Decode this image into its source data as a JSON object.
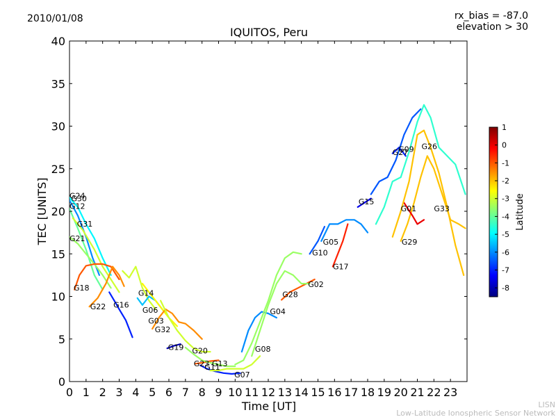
{
  "header": {
    "date": "2010/01/08",
    "bias": "rx_bias = -87.0",
    "elevation": "elevation > 30"
  },
  "footer": {
    "short": "LISN",
    "long": "Low-Latitude Ionospheric Sensor Network"
  },
  "chart_data": {
    "type": "line",
    "title": "IQUITOS, Peru",
    "xlabel": "Time [UT]",
    "ylabel": "TEC [UNITS]",
    "xlim": [
      0,
      24
    ],
    "ylim": [
      0,
      40
    ],
    "xticks": [
      0,
      1,
      2,
      3,
      4,
      5,
      6,
      7,
      8,
      9,
      10,
      11,
      12,
      13,
      14,
      15,
      16,
      17,
      18,
      19,
      20,
      21,
      22,
      23
    ],
    "yticks": [
      0,
      5,
      10,
      15,
      20,
      25,
      30,
      35,
      40
    ],
    "colorbar": {
      "label": "Latitude",
      "range": [
        -8.5,
        1
      ],
      "ticks": [
        1,
        0,
        -1,
        -2,
        -3,
        -4,
        -5,
        -6,
        -7,
        -8
      ],
      "stops": [
        "#00007f",
        "#0000ff",
        "#007fff",
        "#00ffff",
        "#7fff7f",
        "#ffff00",
        "#ff7f00",
        "#ff0000",
        "#7f0000"
      ]
    },
    "series": [
      {
        "name": "G24",
        "label_at": [
          0,
          21.5
        ],
        "lat": -5,
        "points": [
          [
            0,
            21.6
          ],
          [
            0.5,
            20.5
          ],
          [
            1,
            18.5
          ],
          [
            1.5,
            16.8
          ],
          [
            2,
            14.5
          ],
          [
            2.5,
            12.5
          ]
        ]
      },
      {
        "name": "G30",
        "label_at": [
          0.1,
          21.2
        ],
        "lat": -6,
        "points": [
          [
            0,
            21.3
          ],
          [
            0.5,
            19.5
          ],
          [
            1,
            17
          ],
          [
            1.4,
            14.5
          ],
          [
            1.8,
            12.5
          ]
        ]
      },
      {
        "name": "G12",
        "label_at": [
          0,
          20.3
        ],
        "lat": -4,
        "points": [
          [
            0,
            20.3
          ],
          [
            0.5,
            18
          ],
          [
            1,
            15.5
          ],
          [
            1.5,
            12.5
          ],
          [
            2,
            10.8
          ]
        ]
      },
      {
        "name": "G31",
        "label_at": [
          0.45,
          18.2
        ],
        "lat": -3,
        "points": [
          [
            0.2,
            19.2
          ],
          [
            0.8,
            17.8
          ],
          [
            1.5,
            15.5
          ],
          [
            2,
            13.5
          ],
          [
            2.5,
            12
          ],
          [
            3,
            10.5
          ]
        ]
      },
      {
        "name": "G21",
        "label_at": [
          0,
          16.5
        ],
        "lat": -3.5,
        "points": [
          [
            0,
            17
          ],
          [
            0.5,
            16.2
          ],
          [
            1,
            15
          ],
          [
            1.5,
            13.8
          ],
          [
            2,
            12.5
          ],
          [
            2.5,
            11
          ]
        ]
      },
      {
        "name": "G18",
        "label_at": [
          0.25,
          10.7
        ],
        "lat": -1,
        "points": [
          [
            0.3,
            10.8
          ],
          [
            0.6,
            12.5
          ],
          [
            1,
            13.6
          ],
          [
            1.5,
            13.8
          ],
          [
            2,
            13.8
          ],
          [
            2.5,
            13.5
          ],
          [
            3,
            12
          ]
        ]
      },
      {
        "name": "G22",
        "label_at": [
          1.25,
          8.5
        ],
        "lat": -1.5,
        "points": [
          [
            1.2,
            8.8
          ],
          [
            1.7,
            9.8
          ],
          [
            2.2,
            11.5
          ],
          [
            2.6,
            13.5
          ],
          [
            3,
            12.5
          ],
          [
            3.3,
            11.2
          ]
        ]
      },
      {
        "name": "G16",
        "label_at": [
          2.65,
          8.7
        ],
        "lat": -7,
        "points": [
          [
            2.4,
            10.5
          ],
          [
            2.7,
            9.5
          ],
          [
            3,
            8.5
          ],
          [
            3.4,
            7.2
          ],
          [
            3.8,
            5.2
          ]
        ]
      },
      {
        "name": "G14",
        "label_at": [
          4.15,
          10.1
        ],
        "lat": -3,
        "points": [
          [
            3.2,
            13
          ],
          [
            3.6,
            12.2
          ],
          [
            4,
            13.5
          ],
          [
            4.4,
            11
          ],
          [
            4.8,
            9.5
          ],
          [
            5.2,
            8.5
          ]
        ]
      },
      {
        "name": "G06",
        "label_at": [
          4.4,
          8.1
        ],
        "lat": -5.5,
        "points": [
          [
            4.1,
            9.8
          ],
          [
            4.4,
            9
          ],
          [
            4.8,
            10
          ],
          [
            5.2,
            9.5
          ],
          [
            5.6,
            8.5
          ],
          [
            6,
            7.5
          ]
        ]
      },
      {
        "name": "G03",
        "label_at": [
          4.75,
          6.8
        ],
        "lat": -2.5,
        "points": [
          [
            4.4,
            11.5
          ],
          [
            4.8,
            10.5
          ],
          [
            5.2,
            9.5
          ],
          [
            5.6,
            8.5
          ],
          [
            6,
            7.5
          ],
          [
            6.5,
            6.5
          ]
        ]
      },
      {
        "name": "G32",
        "label_at": [
          5.15,
          5.8
        ],
        "lat": -1.5,
        "points": [
          [
            5,
            6.2
          ],
          [
            5.4,
            7.5
          ],
          [
            5.8,
            8.5
          ],
          [
            6.2,
            8
          ],
          [
            6.6,
            7
          ],
          [
            7,
            6.8
          ],
          [
            7.5,
            6
          ],
          [
            8,
            5
          ]
        ]
      },
      {
        "name": "G19",
        "label_at": [
          5.95,
          3.7
        ],
        "lat": -8,
        "points": [
          [
            5.9,
            3.9
          ],
          [
            6.3,
            4.2
          ],
          [
            6.7,
            4.4
          ]
        ]
      },
      {
        "name": "G20",
        "label_at": [
          7.4,
          3.3
        ],
        "lat": -3,
        "points": [
          [
            5.5,
            9.5
          ],
          [
            6,
            7.5
          ],
          [
            6.5,
            6
          ],
          [
            7,
            4.8
          ],
          [
            7.5,
            3.9
          ],
          [
            8,
            3.5
          ],
          [
            8.5,
            3.5
          ]
        ]
      },
      {
        "name": "G23",
        "label_at": [
          7.5,
          1.8
        ],
        "lat": -1,
        "points": [
          [
            7.6,
            2.1
          ],
          [
            8,
            2.2
          ],
          [
            8.5,
            2.4
          ],
          [
            9,
            2.5
          ]
        ]
      },
      {
        "name": "G11",
        "label_at": [
          8.15,
          1.4
        ],
        "lat": -7,
        "points": [
          [
            7.9,
            1.9
          ],
          [
            8.3,
            1.5
          ],
          [
            8.8,
            1.2
          ],
          [
            9.3,
            1
          ],
          [
            9.8,
            0.9
          ],
          [
            10.3,
            1
          ]
        ]
      },
      {
        "name": "G13",
        "label_at": [
          8.6,
          1.8
        ],
        "lat": -3.5,
        "points": [
          [
            7,
            4
          ],
          [
            7.5,
            3.2
          ],
          [
            8,
            2.5
          ],
          [
            8.5,
            2.2
          ],
          [
            9,
            2
          ],
          [
            9.5,
            1.8
          ],
          [
            10,
            1.8
          ]
        ]
      },
      {
        "name": "G07",
        "label_at": [
          9.95,
          0.5
        ],
        "lat": -3,
        "points": [
          [
            8.5,
            1.3
          ],
          [
            9,
            1.3
          ],
          [
            9.5,
            1.5
          ],
          [
            10,
            1.5
          ],
          [
            10.5,
            1.5
          ],
          [
            11,
            2
          ],
          [
            11.5,
            3
          ]
        ]
      },
      {
        "name": "G08",
        "label_at": [
          11.2,
          3.5
        ],
        "lat": -6,
        "points": [
          [
            10.4,
            3.5
          ],
          [
            10.8,
            6
          ],
          [
            11.2,
            7.5
          ],
          [
            11.6,
            8.2
          ],
          [
            12,
            8
          ],
          [
            12.5,
            7.5
          ]
        ]
      },
      {
        "name": "G04",
        "label_at": [
          12.1,
          7.9
        ],
        "lat": -3.5,
        "points": [
          [
            10,
            2
          ],
          [
            10.5,
            2.5
          ],
          [
            11,
            4.5
          ],
          [
            11.5,
            7
          ],
          [
            12,
            9.5
          ],
          [
            12.5,
            12.5
          ],
          [
            13,
            14.5
          ],
          [
            13.5,
            15.2
          ],
          [
            14,
            15
          ]
        ]
      },
      {
        "name": "G28",
        "label_at": [
          12.85,
          9.9
        ],
        "lat": -1,
        "points": [
          [
            12.8,
            9.6
          ],
          [
            13.3,
            10.5
          ],
          [
            13.8,
            11
          ],
          [
            14.3,
            11.5
          ],
          [
            14.8,
            12
          ]
        ]
      },
      {
        "name": "G02",
        "label_at": [
          14.4,
          11.1
        ],
        "lat": -3.5,
        "points": [
          [
            11,
            3
          ],
          [
            11.5,
            6
          ],
          [
            12,
            9
          ],
          [
            12.5,
            11.5
          ],
          [
            13,
            13
          ],
          [
            13.5,
            12.5
          ],
          [
            14,
            11.5
          ],
          [
            14.5,
            11.5
          ]
        ]
      },
      {
        "name": "G10",
        "label_at": [
          14.65,
          14.8
        ],
        "lat": -6.5,
        "points": [
          [
            14.5,
            15
          ],
          [
            15,
            16.5
          ],
          [
            15.4,
            18.2
          ]
        ]
      },
      {
        "name": "G05",
        "label_at": [
          15.3,
          16.1
        ],
        "lat": -6,
        "points": [
          [
            15.2,
            16.5
          ],
          [
            15.7,
            18.5
          ],
          [
            16.2,
            18.5
          ],
          [
            16.7,
            19
          ],
          [
            17.2,
            19
          ],
          [
            17.6,
            18.5
          ],
          [
            18,
            17.5
          ]
        ]
      },
      {
        "name": "G17",
        "label_at": [
          15.9,
          13.2
        ],
        "lat": -0.5,
        "points": [
          [
            15.9,
            13.5
          ],
          [
            16.2,
            15
          ],
          [
            16.5,
            16.5
          ],
          [
            16.8,
            18.5
          ]
        ]
      },
      {
        "name": "G15",
        "label_at": [
          17.45,
          20.8
        ],
        "lat": -7.5,
        "points": [
          [
            17.4,
            20.5
          ],
          [
            17.8,
            21
          ],
          [
            18.2,
            21.5
          ]
        ]
      },
      {
        "name": "G27",
        "label_at": [
          19.5,
          26.6
        ],
        "lat": -7,
        "points": [
          [
            19.5,
            26.8
          ],
          [
            19.9,
            27.5
          ],
          [
            20.3,
            26.5
          ]
        ]
      },
      {
        "name": "G09",
        "label_at": [
          19.85,
          27.0
        ],
        "lat": -6.5,
        "points": [
          [
            18.2,
            22
          ],
          [
            18.7,
            23.5
          ],
          [
            19.2,
            24
          ],
          [
            19.7,
            26
          ],
          [
            20.2,
            29
          ],
          [
            20.7,
            31
          ],
          [
            21.2,
            32
          ]
        ]
      },
      {
        "name": "G26",
        "label_at": [
          21.25,
          27.3
        ],
        "lat": -4.5,
        "points": [
          [
            18.5,
            18.5
          ],
          [
            19,
            20.5
          ],
          [
            19.5,
            23.5
          ],
          [
            20,
            24
          ],
          [
            20.5,
            27
          ],
          [
            21,
            30.5
          ],
          [
            21.4,
            32.5
          ],
          [
            21.8,
            31
          ],
          [
            22.3,
            27.5
          ],
          [
            22.8,
            26.5
          ],
          [
            23.3,
            25.5
          ],
          [
            23.9,
            22
          ]
        ]
      },
      {
        "name": "G29",
        "label_at": [
          20.05,
          16.1
        ],
        "lat": -2,
        "points": [
          [
            20,
            16.5
          ],
          [
            20.4,
            18.5
          ],
          [
            20.8,
            21
          ],
          [
            21.2,
            24
          ],
          [
            21.6,
            26.5
          ],
          [
            22,
            25
          ],
          [
            22.5,
            22
          ],
          [
            23,
            19
          ],
          [
            23.5,
            18.5
          ],
          [
            23.9,
            18
          ]
        ]
      },
      {
        "name": "G01",
        "label_at": [
          20,
          20
        ],
        "lat": 0,
        "points": [
          [
            20.2,
            21
          ],
          [
            20.7,
            19.5
          ],
          [
            21,
            18.5
          ],
          [
            21.4,
            19
          ]
        ]
      },
      {
        "name": "G33",
        "label_at": [
          22,
          20
        ],
        "lat": -2,
        "points": [
          [
            19.5,
            17
          ],
          [
            20,
            20
          ],
          [
            20.5,
            23.5
          ],
          [
            21,
            29
          ],
          [
            21.4,
            29.5
          ],
          [
            21.8,
            27.5
          ],
          [
            22.3,
            24.5
          ],
          [
            22.8,
            20.5
          ],
          [
            23.3,
            16
          ],
          [
            23.8,
            12.5
          ]
        ]
      }
    ]
  }
}
